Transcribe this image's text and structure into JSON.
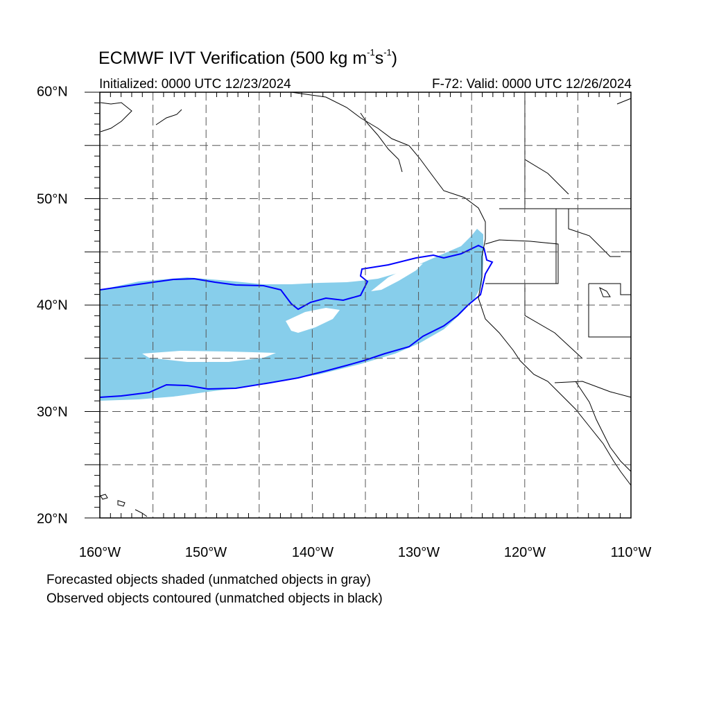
{
  "title": {
    "main": "ECMWF IVT Verification (500 kg m",
    "sup1": "-1",
    "mid": "s",
    "sup2": "-1",
    "end": ")"
  },
  "initialized": "Initialized: 0000 UTC 12/23/2024",
  "valid": "F-72: Valid: 0000 UTC 12/26/2024",
  "lat_labels": [
    "60°N",
    "50°N",
    "40°N",
    "30°N",
    "20°N"
  ],
  "lon_labels": [
    "160°W",
    "150°W",
    "140°W",
    "130°W",
    "120°W",
    "110°W"
  ],
  "footnotes": [
    "Forecasted objects shaded (unmatched objects in gray)",
    "Observed objects contoured (unmatched objects in black)"
  ],
  "colors": {
    "forecast_fill": "#87ceeb",
    "observed_contour": "#0000ff",
    "coastline": "#000000",
    "gridline": "#555555"
  },
  "map_extent": {
    "lon_min": -160,
    "lon_max": -110,
    "lat_min": 20,
    "lat_max": 60
  }
}
